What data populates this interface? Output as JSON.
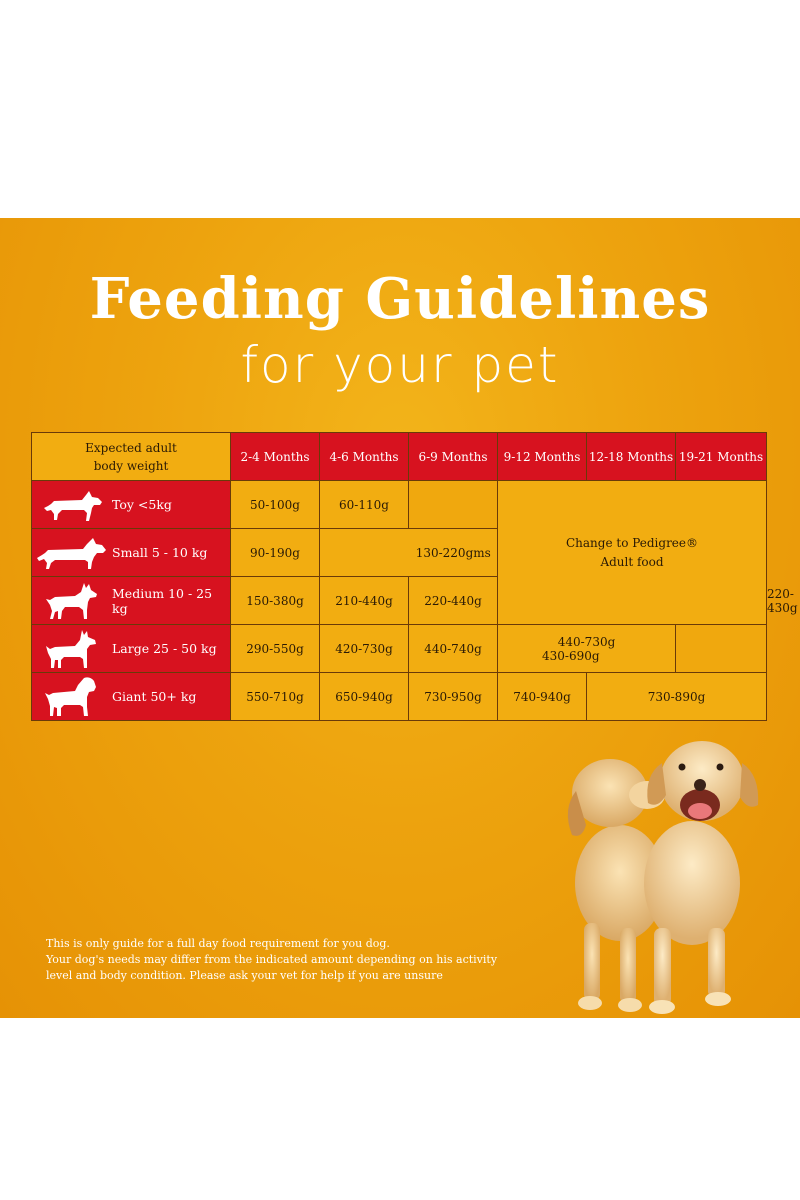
{
  "title": "Feeding Guidelines",
  "subtitle": "for your pet",
  "table": {
    "weight_header_line1": "Expected adult",
    "weight_header_line2": "body weight",
    "months": [
      "2-4 Months",
      "4-6 Months",
      "6-9 Months",
      "9-12 Months",
      "12-18 Months",
      "19-21 Months"
    ],
    "rows": [
      {
        "label": "Toy <5kg",
        "icon": "dachshund-icon",
        "values": [
          "50-100g",
          "60-110g"
        ]
      },
      {
        "label": "Small 5 - 10 kg",
        "icon": "dachshund-long-icon",
        "values": [
          "90-190g",
          "130-220gms"
        ]
      },
      {
        "label": "Medium 10 - 25 kg",
        "icon": "shepherd-dog-icon",
        "values": [
          "150-380g",
          "210-440g",
          "220-440g",
          "220-430g"
        ]
      },
      {
        "label": "Large 25 - 50 kg",
        "icon": "large-dog-icon",
        "values": [
          "290-550g",
          "420-730g",
          "440-740g",
          "440-730g",
          "430-690g"
        ]
      },
      {
        "label": "Giant 50+ kg",
        "icon": "giant-dog-icon",
        "values": [
          "550-710g",
          "650-940g",
          "730-950g",
          "740-940g",
          "730-890g"
        ]
      }
    ],
    "change_line1": "Change to Pedigree®",
    "change_line2": "Adult food"
  },
  "disclaimer": [
    "This is only guide for a full day food requirement for you dog.",
    "Your dog's needs may differ from the indicated amount depending on his activity",
    "level and body condition. Please ask your vet for help if you are unsure"
  ],
  "colors": {
    "background": "#eda30e",
    "header_red": "#d7121f",
    "cell_yellow": "#f2ad11",
    "text_white": "#ffffff"
  }
}
